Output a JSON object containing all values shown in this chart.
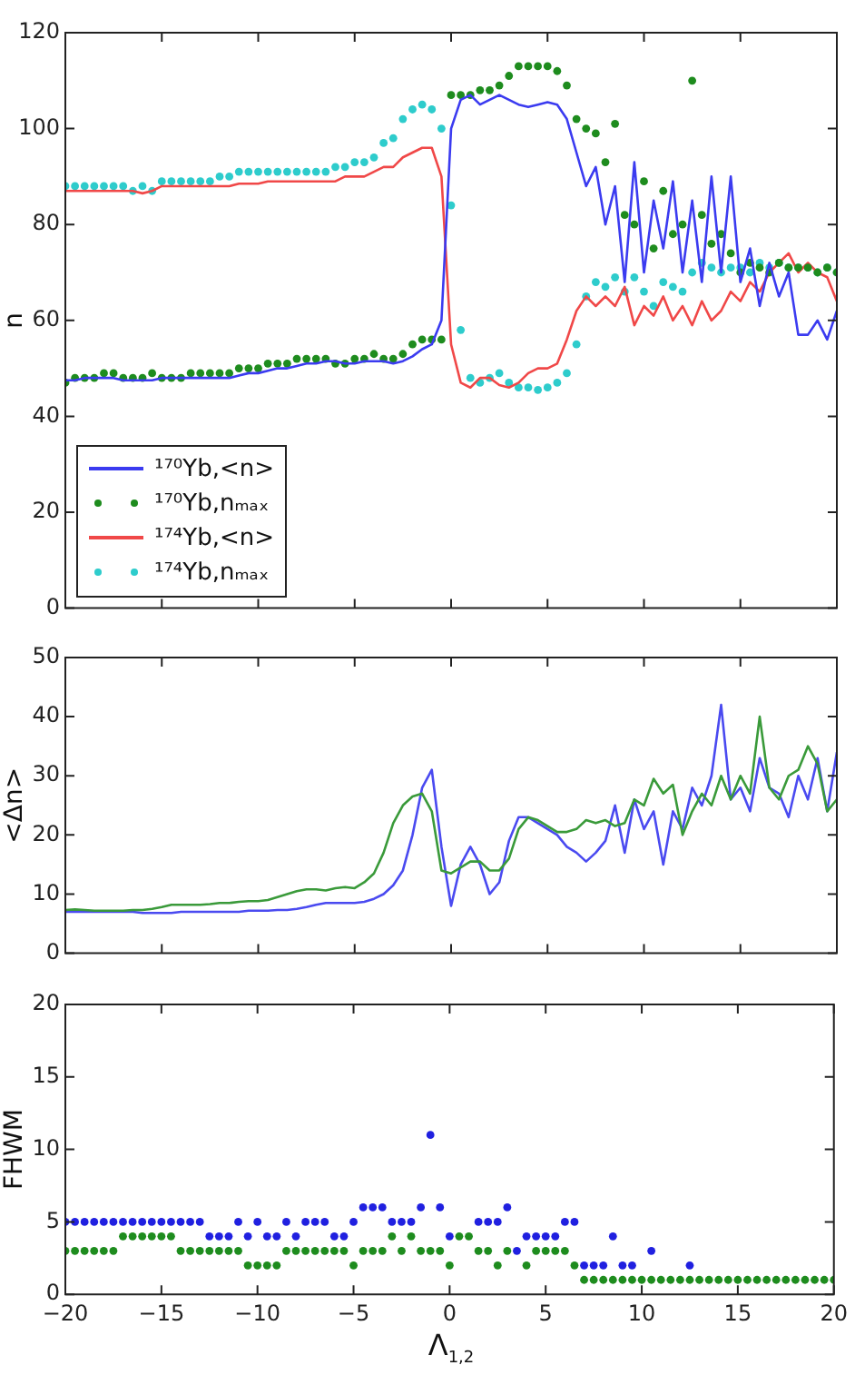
{
  "chart_data": [
    {
      "type": "line",
      "ylabel": "n",
      "xlim": [
        -20,
        20
      ],
      "xticks": [
        -20,
        -15,
        -10,
        -5,
        0,
        5,
        10,
        15,
        20
      ],
      "ylim": [
        0,
        120
      ],
      "yticks": [
        0,
        20,
        40,
        60,
        80,
        100,
        120
      ],
      "tick_labels": "y",
      "grid": false,
      "legend": "bottom left",
      "x": [
        -20,
        -19.5,
        -19,
        -18.5,
        -18,
        -17.5,
        -17,
        -16.5,
        -16,
        -15.5,
        -15,
        -14.5,
        -14,
        -13.5,
        -13,
        -12.5,
        -12,
        -11.5,
        -11,
        -10.5,
        -10,
        -9.5,
        -9,
        -8.5,
        -8,
        -7.5,
        -7,
        -6.5,
        -6,
        -5.5,
        -5,
        -4.5,
        -4,
        -3.5,
        -3,
        -2.5,
        -2,
        -1.5,
        -1,
        -0.5,
        0,
        0.5,
        1,
        1.5,
        2,
        2.5,
        3,
        3.5,
        4,
        4.5,
        5,
        5.5,
        6,
        6.5,
        7,
        7.5,
        8,
        8.5,
        9,
        9.5,
        10,
        10.5,
        11,
        11.5,
        12,
        12.5,
        13,
        13.5,
        14,
        14.5,
        15,
        15.5,
        16,
        16.5,
        17,
        17.5,
        18,
        18.5,
        19,
        19.5,
        20
      ],
      "series": [
        {
          "name": "¹⁷⁰Yb,<n>",
          "color": "#3b3bf0",
          "values": [
            47.5,
            47.5,
            48,
            48,
            48,
            48,
            47.5,
            47.5,
            47.5,
            47.5,
            48,
            48,
            48,
            48,
            48,
            48,
            48,
            48,
            48.5,
            49,
            49,
            49.5,
            50,
            50,
            50.5,
            51,
            51,
            51.5,
            51.5,
            51,
            51,
            51.5,
            51.5,
            51.5,
            51,
            51.5,
            52.5,
            54,
            55,
            60,
            100,
            106,
            107,
            105,
            106,
            107,
            106,
            105,
            104.5,
            105,
            105.5,
            105,
            102,
            95,
            88,
            92,
            80,
            88,
            68,
            93,
            70,
            85,
            75,
            89,
            70,
            85,
            68,
            90,
            70,
            90,
            68,
            75,
            63,
            72,
            65,
            70,
            57,
            57,
            60,
            56,
            62
          ]
        },
        {
          "name": "¹⁷⁰Yb,nₘₐₓ",
          "type": "scatter",
          "marker": "circle",
          "color": "#1e8c1e",
          "values": [
            47,
            48,
            48,
            48,
            49,
            49,
            48,
            48,
            48,
            49,
            48,
            48,
            48,
            49,
            49,
            49,
            49,
            49,
            50,
            50,
            50,
            51,
            51,
            51,
            52,
            52,
            52,
            52,
            51,
            51,
            52,
            52,
            53,
            52,
            52,
            53,
            55,
            56,
            56,
            56,
            107,
            107,
            107,
            108,
            108,
            109,
            111,
            113,
            113,
            113,
            113,
            112,
            109,
            102,
            100,
            99,
            93,
            101,
            82,
            80,
            89,
            75,
            87,
            78,
            80,
            110,
            82,
            76,
            78,
            74,
            70,
            72,
            71,
            70,
            72,
            71,
            71,
            71,
            70,
            71,
            70
          ]
        },
        {
          "name": "¹⁷⁴Yb,<n>",
          "color": "#f04848",
          "values": [
            87,
            87,
            87,
            87,
            87,
            87,
            87,
            87,
            86.5,
            87,
            88,
            88,
            88,
            88,
            88,
            88,
            88,
            88,
            88.5,
            88.5,
            88.5,
            89,
            89,
            89,
            89,
            89,
            89,
            89,
            89,
            90,
            90,
            90,
            91,
            92,
            92,
            94,
            95,
            96,
            96,
            90,
            55,
            47,
            46,
            48,
            48,
            46.5,
            46,
            47,
            49,
            50,
            50,
            51,
            56,
            62,
            65,
            63,
            65,
            63,
            67,
            59,
            63,
            61,
            65,
            60,
            63,
            59,
            64,
            60,
            62,
            66,
            64,
            68,
            66,
            70,
            72,
            74,
            70,
            72,
            70,
            69,
            64
          ]
        },
        {
          "name": "¹⁷⁴Yb,nₘₐₓ",
          "type": "scatter",
          "marker": "circle",
          "color": "#2ecccc",
          "values": [
            88,
            88,
            88,
            88,
            88,
            88,
            88,
            87,
            88,
            87,
            89,
            89,
            89,
            89,
            89,
            89,
            90,
            90,
            91,
            91,
            91,
            91,
            91,
            91,
            91,
            91,
            91,
            91,
            92,
            92,
            93,
            93,
            94,
            97,
            98,
            102,
            104,
            105,
            104,
            100,
            84,
            58,
            48,
            47,
            48,
            49,
            47,
            46,
            46,
            45.5,
            46,
            47,
            49,
            55,
            65,
            68,
            67,
            69,
            66,
            69,
            66,
            63,
            68,
            67,
            66,
            70,
            72,
            71,
            70,
            71,
            71,
            70,
            72,
            71,
            72,
            71,
            71,
            71,
            70,
            71,
            70
          ]
        }
      ]
    },
    {
      "type": "line",
      "ylabel": "<Δn>",
      "xlim": [
        -20,
        20
      ],
      "xticks": [
        -20,
        -15,
        -10,
        -5,
        0,
        5,
        10,
        15,
        20
      ],
      "ylim": [
        0,
        50
      ],
      "yticks": [
        0,
        10,
        20,
        30,
        40,
        50
      ],
      "tick_labels": "y",
      "grid": false,
      "x": [
        -20,
        -19.5,
        -19,
        -18.5,
        -18,
        -17.5,
        -17,
        -16.5,
        -16,
        -15.5,
        -15,
        -14.5,
        -14,
        -13.5,
        -13,
        -12.5,
        -12,
        -11.5,
        -11,
        -10.5,
        -10,
        -9.5,
        -9,
        -8.5,
        -8,
        -7.5,
        -7,
        -6.5,
        -6,
        -5.5,
        -5,
        -4.5,
        -4,
        -3.5,
        -3,
        -2.5,
        -2,
        -1.5,
        -1,
        -0.5,
        0,
        0.5,
        1,
        1.5,
        2,
        2.5,
        3,
        3.5,
        4,
        4.5,
        5,
        5.5,
        6,
        6.5,
        7,
        7.5,
        8,
        8.5,
        9,
        9.5,
        10,
        10.5,
        11,
        11.5,
        12,
        12.5,
        13,
        13.5,
        14,
        14.5,
        15,
        15.5,
        16,
        16.5,
        17,
        17.5,
        18,
        18.5,
        19,
        19.5,
        20
      ],
      "series": [
        {
          "color": "#3a9a3a",
          "values": [
            7.3,
            7.4,
            7.3,
            7.2,
            7.2,
            7.2,
            7.2,
            7.3,
            7.3,
            7.5,
            7.8,
            8.2,
            8.2,
            8.2,
            8.2,
            8.3,
            8.5,
            8.5,
            8.7,
            8.8,
            8.8,
            9,
            9.5,
            10,
            10.5,
            10.8,
            10.8,
            10.6,
            11,
            11.2,
            11,
            12,
            13.5,
            17,
            22,
            25,
            26.5,
            27,
            24,
            14,
            13.5,
            14.5,
            15.5,
            15.5,
            14,
            14,
            16,
            21,
            23,
            22.5,
            21.5,
            20.5,
            20.5,
            21,
            22.5,
            22,
            22.5,
            21.5,
            22,
            26,
            25,
            29.5,
            27,
            28.5,
            20,
            24,
            27,
            25,
            30,
            26,
            30,
            27,
            40,
            28,
            26,
            30,
            31,
            35,
            32,
            24,
            26
          ]
        },
        {
          "color": "#4a4af0",
          "values": [
            7,
            7,
            7,
            7,
            7,
            7,
            7,
            7,
            6.8,
            6.8,
            6.8,
            6.8,
            7,
            7,
            7,
            7,
            7,
            7,
            7,
            7.2,
            7.2,
            7.2,
            7.3,
            7.3,
            7.5,
            7.8,
            8.2,
            8.5,
            8.5,
            8.5,
            8.5,
            8.7,
            9.2,
            10,
            11.5,
            14,
            20,
            28,
            31,
            18,
            8,
            15,
            18,
            15,
            10,
            12,
            19,
            23,
            23,
            22,
            21,
            20,
            18,
            17,
            15.5,
            17,
            19,
            25,
            17,
            26,
            21,
            24,
            15,
            24,
            21,
            28,
            25,
            30,
            42,
            26,
            28,
            24,
            33,
            28,
            27,
            23,
            30,
            26,
            33,
            24,
            34
          ]
        }
      ]
    },
    {
      "type": "scatter",
      "ylabel": "FHWM",
      "xlabel": "Λ$_{1,2}$",
      "xlim": [
        -20,
        20
      ],
      "xticks": [
        -20,
        -15,
        -10,
        -5,
        0,
        5,
        10,
        15,
        20
      ],
      "ylim": [
        0,
        20
      ],
      "yticks": [
        0,
        5,
        10,
        15,
        20
      ],
      "grid": false,
      "marker": "circle",
      "x": [
        -20,
        -19.5,
        -19,
        -18.5,
        -18,
        -17.5,
        -17,
        -16.5,
        -16,
        -15.5,
        -15,
        -14.5,
        -14,
        -13.5,
        -13,
        -12.5,
        -12,
        -11.5,
        -11,
        -10.5,
        -10,
        -9.5,
        -9,
        -8.5,
        -8,
        -7.5,
        -7,
        -6.5,
        -6,
        -5.5,
        -5,
        -4.5,
        -4,
        -3.5,
        -3,
        -2.5,
        -2,
        -1.5,
        -1,
        -0.5,
        0,
        0.5,
        1,
        1.5,
        2,
        2.5,
        3,
        3.5,
        4,
        4.5,
        5,
        5.5,
        6,
        6.5,
        7,
        7.5,
        8,
        8.5,
        9,
        9.5,
        10,
        10.5,
        11,
        11.5,
        12,
        12.5,
        13,
        13.5,
        14,
        14.5,
        15,
        15.5,
        16,
        16.5,
        17,
        17.5,
        18,
        18.5,
        19,
        19.5,
        20
      ],
      "series": [
        {
          "color": "#2020e0",
          "values": [
            5,
            5,
            5,
            5,
            5,
            5,
            5,
            5,
            5,
            5,
            5,
            5,
            5,
            5,
            5,
            4,
            4,
            4,
            5,
            4,
            5,
            4,
            4,
            5,
            4,
            5,
            5,
            5,
            4,
            4,
            5,
            6,
            6,
            6,
            5,
            5,
            5,
            6,
            11,
            6,
            4,
            null,
            null,
            5,
            5,
            5,
            6,
            3,
            4,
            4,
            4,
            4,
            5,
            5,
            2,
            2,
            2,
            4,
            2,
            2,
            null,
            3,
            null,
            null,
            null,
            2,
            null,
            null,
            null,
            null,
            null,
            null,
            null,
            null,
            null,
            null,
            null,
            null,
            null,
            null,
            null
          ]
        },
        {
          "color": "#1e8c1e",
          "values": [
            3,
            3,
            3,
            3,
            3,
            3,
            4,
            4,
            4,
            4,
            4,
            4,
            3,
            3,
            3,
            3,
            3,
            3,
            3,
            2,
            2,
            2,
            2,
            3,
            3,
            3,
            3,
            3,
            3,
            3,
            2,
            3,
            3,
            3,
            4,
            3,
            4,
            3,
            3,
            3,
            2,
            4,
            4,
            3,
            3,
            2,
            3,
            null,
            2,
            3,
            3,
            3,
            3,
            2,
            1,
            1,
            1,
            1,
            1,
            1,
            1,
            1,
            1,
            1,
            1,
            1,
            1,
            1,
            1,
            1,
            1,
            1,
            1,
            1,
            1,
            1,
            1,
            1,
            1,
            1,
            1
          ]
        }
      ]
    }
  ]
}
